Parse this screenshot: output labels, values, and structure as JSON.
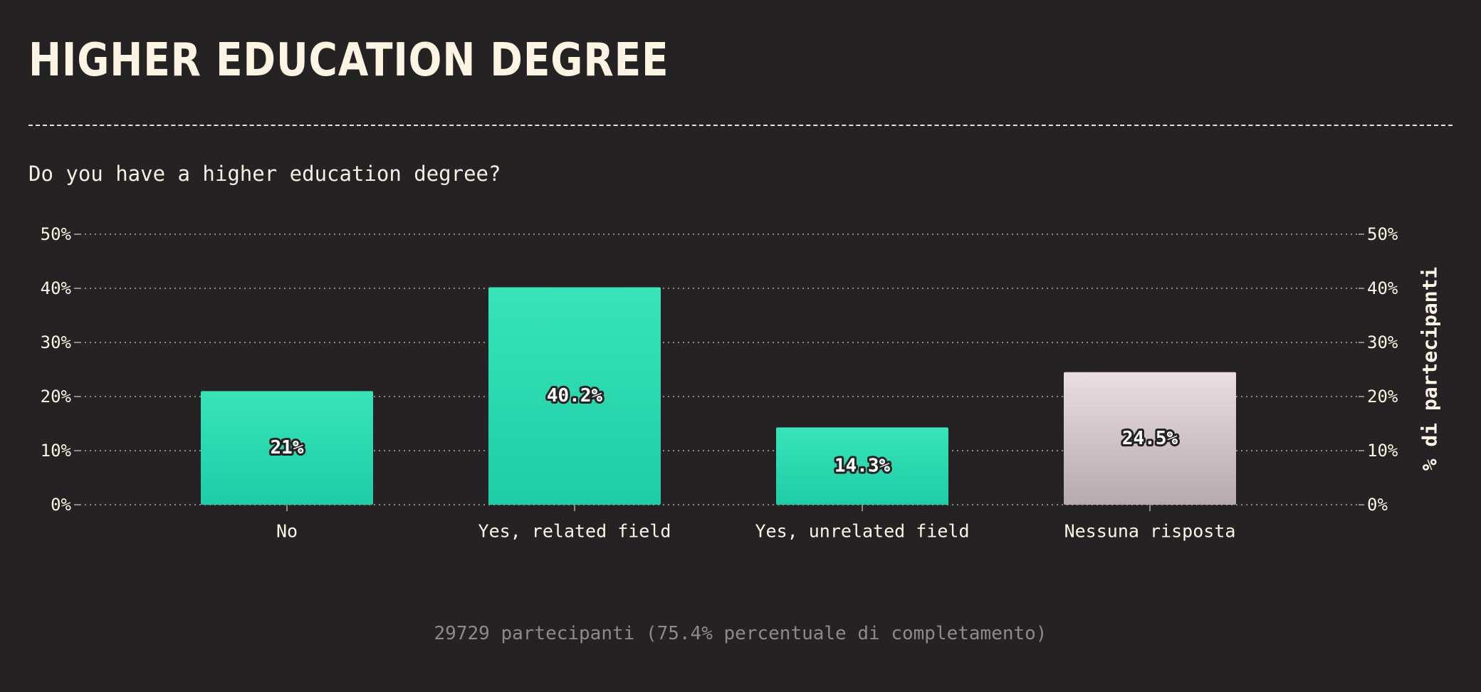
{
  "header": {
    "title": "HIGHER EDUCATION DEGREE",
    "question": "Do you have a higher education degree?"
  },
  "footer": {
    "note": "29729 partecipanti (75.4% percentuale di completamento)"
  },
  "colors": {
    "background": "#252223",
    "answer_bar_top": "#38e4b8",
    "answer_bar_bottom": "#20cca6",
    "no_answer_bar_top": "#ebdde2",
    "no_answer_bar_bottom": "#b6aaad",
    "text": "#fdf5e6",
    "grid": "#8d8986"
  },
  "chart_data": {
    "type": "bar",
    "title": "",
    "xlabel": "",
    "ylabel": "% di partecipanti",
    "categories": [
      "No",
      "Yes, related field",
      "Yes, unrelated field",
      "Nessuna risposta"
    ],
    "values": [
      21,
      40.2,
      14.3,
      24.5
    ],
    "value_labels": [
      "21%",
      "40.2%",
      "14.3%",
      "24.5%"
    ],
    "yticks": [
      "0%",
      "10%",
      "20%",
      "30%",
      "40%",
      "50%"
    ],
    "ylim": [
      0,
      50
    ],
    "grid": true,
    "grid_style": "dotted",
    "ytick_labels_both_sides": true,
    "ylabel_side": "right"
  }
}
